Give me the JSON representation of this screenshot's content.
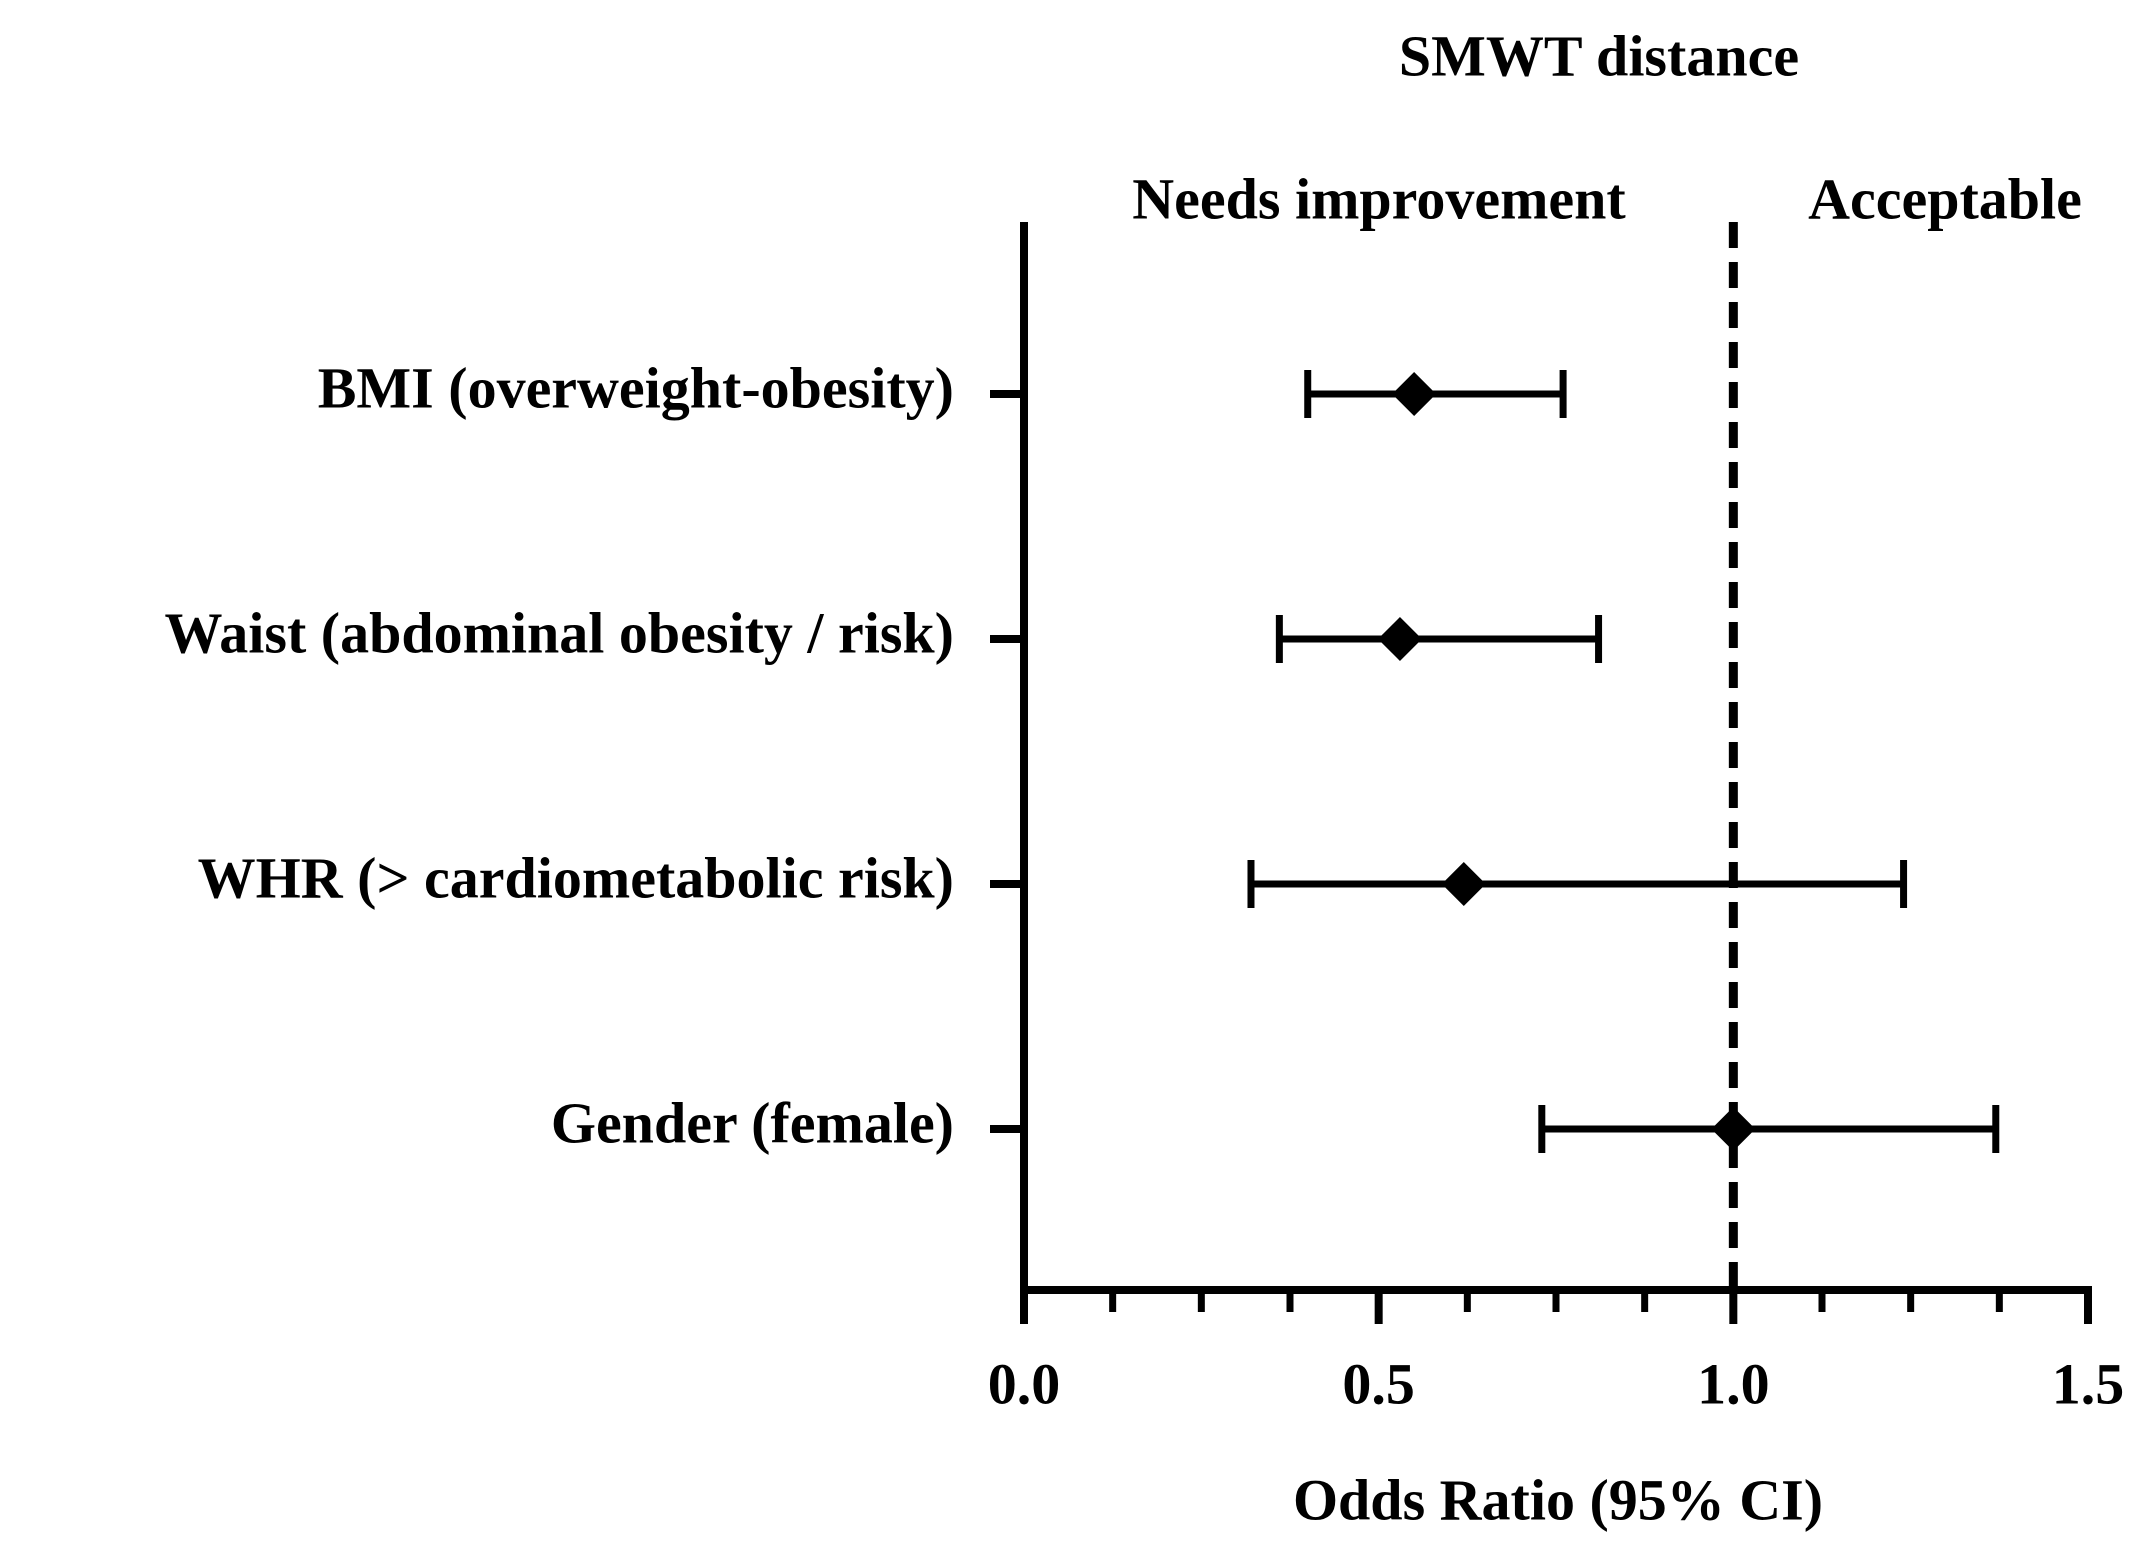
{
  "chart_data": {
    "type": "forest",
    "title": "SMWT distance",
    "xlabel": "Odds Ratio (95% CI)",
    "annotations": [
      "Needs improvement",
      "Acceptable"
    ],
    "categories": [
      "BMI (overweight-obesity)",
      "Waist (abdominal obesity / risk)",
      "WHR  (> cardiometabolic risk)",
      "Gender (female)"
    ],
    "values": [
      0.55,
      0.53,
      0.62,
      1.0
    ],
    "lower": [
      0.4,
      0.36,
      0.32,
      0.73
    ],
    "upper": [
      0.76,
      0.81,
      1.24,
      1.37
    ],
    "color": "#000000",
    "reference_line": 1,
    "xlim": [
      0,
      1.5
    ],
    "xticks": [
      {
        "value": 0,
        "label": "0.0"
      },
      0.5,
      {
        "value": 1,
        "label": "1.0"
      },
      1.5
    ],
    "minor_xticks": [
      0.125,
      0.25,
      0.375,
      0.625,
      0.75,
      0.875,
      1.125,
      1.25,
      1.375
    ]
  }
}
